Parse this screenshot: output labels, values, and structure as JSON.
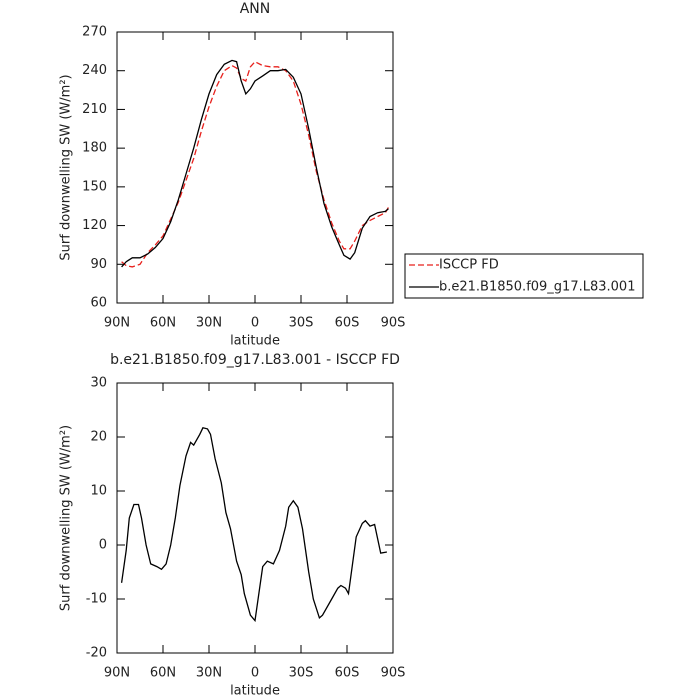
{
  "chart_data": [
    {
      "type": "line",
      "title": "ANN",
      "xlabel": "latitude",
      "ylabel": "Surf downwelling SW (W/m²)",
      "xlim": [
        90,
        -90
      ],
      "xticks": [
        {
          "value": 90,
          "label": "90N"
        },
        {
          "value": 60,
          "label": "60N"
        },
        {
          "value": 30,
          "label": "30N"
        },
        0,
        {
          "value": -30,
          "label": "30S"
        },
        {
          "value": -60,
          "label": "60S"
        },
        {
          "value": -90,
          "label": "90S"
        }
      ],
      "ylim": [
        60,
        270
      ],
      "yticks": [
        60,
        90,
        120,
        150,
        180,
        210,
        240,
        270
      ],
      "legend": "outside right",
      "x": [
        87,
        84,
        80,
        75,
        70,
        65,
        60,
        55,
        50,
        45,
        40,
        35,
        30,
        25,
        20,
        15,
        12,
        9,
        6,
        3,
        0,
        -5,
        -10,
        -15,
        -20,
        -25,
        -30,
        -35,
        -40,
        -45,
        -50,
        -55,
        -58,
        -62,
        -65,
        -70,
        -75,
        -80,
        -85,
        -87
      ],
      "series": [
        {
          "name": "ISCCP FD",
          "color": "#e8201c",
          "linestyle": "dashed",
          "values": [
            92,
            89,
            88,
            90,
            99,
            105,
            112,
            125,
            138,
            155,
            172,
            193,
            212,
            228,
            240,
            244,
            242,
            234,
            232,
            243,
            247,
            244,
            243,
            243,
            240,
            232,
            214,
            190,
            162,
            140,
            122,
            108,
            102,
            102,
            108,
            120,
            124,
            127,
            130,
            134
          ]
        },
        {
          "name": "b.e21.B1850.f09_g17.L83.001",
          "color": "#000000",
          "linestyle": "solid",
          "values": [
            88,
            92,
            95,
            95,
            98,
            103,
            110,
            123,
            140,
            160,
            180,
            202,
            222,
            237,
            245,
            248,
            247,
            232,
            222,
            226,
            232,
            236,
            240,
            240,
            241,
            235,
            222,
            195,
            165,
            137,
            119,
            105,
            97,
            94,
            99,
            118,
            127,
            130,
            131,
            133
          ]
        }
      ]
    },
    {
      "type": "line",
      "title": "b.e21.B1850.f09_g17.L83.001 - ISCCP FD",
      "xlabel": "latitude",
      "ylabel": "Surf downwelling SW (W/m²)",
      "xlim": [
        90,
        -90
      ],
      "xticks": [
        {
          "value": 90,
          "label": "90N"
        },
        {
          "value": 60,
          "label": "60N"
        },
        {
          "value": 30,
          "label": "30N"
        },
        0,
        {
          "value": -30,
          "label": "30S"
        },
        {
          "value": -60,
          "label": "60S"
        },
        {
          "value": -90,
          "label": "90S"
        }
      ],
      "ylim": [
        -20,
        30
      ],
      "yticks": [
        -20,
        -10,
        0,
        10,
        20,
        30
      ],
      "x": [
        87,
        84,
        82,
        79,
        76,
        74,
        71,
        68,
        64,
        61,
        58,
        55,
        52,
        49,
        45,
        42,
        40,
        36,
        34,
        31,
        29,
        26,
        22,
        19,
        16,
        12,
        9,
        7,
        3,
        0,
        -5,
        -8,
        -12,
        -16,
        -20,
        -22,
        -25,
        -28,
        -31,
        -35,
        -38,
        -42,
        -44,
        -50,
        -54,
        -56,
        -59,
        -61,
        -66,
        -70,
        -72,
        -75,
        -78,
        -82,
        -86
      ],
      "series": [
        {
          "color": "#000000",
          "linestyle": "solid",
          "values": [
            -7,
            -1,
            5,
            7.5,
            7.5,
            5,
            0,
            -3.5,
            -4,
            -4.5,
            -3.5,
            0,
            5,
            11,
            16.5,
            19,
            18.5,
            20.5,
            21.7,
            21.5,
            20.5,
            16,
            11.5,
            6,
            3,
            -3,
            -5.5,
            -9,
            -13,
            -14,
            -4,
            -3,
            -3.5,
            -1,
            3.5,
            7,
            8.2,
            7,
            3,
            -5,
            -10,
            -13.5,
            -13,
            -10,
            -8,
            -7.5,
            -8,
            -9,
            1.5,
            4,
            4.5,
            3.5,
            3.8,
            -1.5,
            -1.3
          ]
        }
      ]
    }
  ]
}
